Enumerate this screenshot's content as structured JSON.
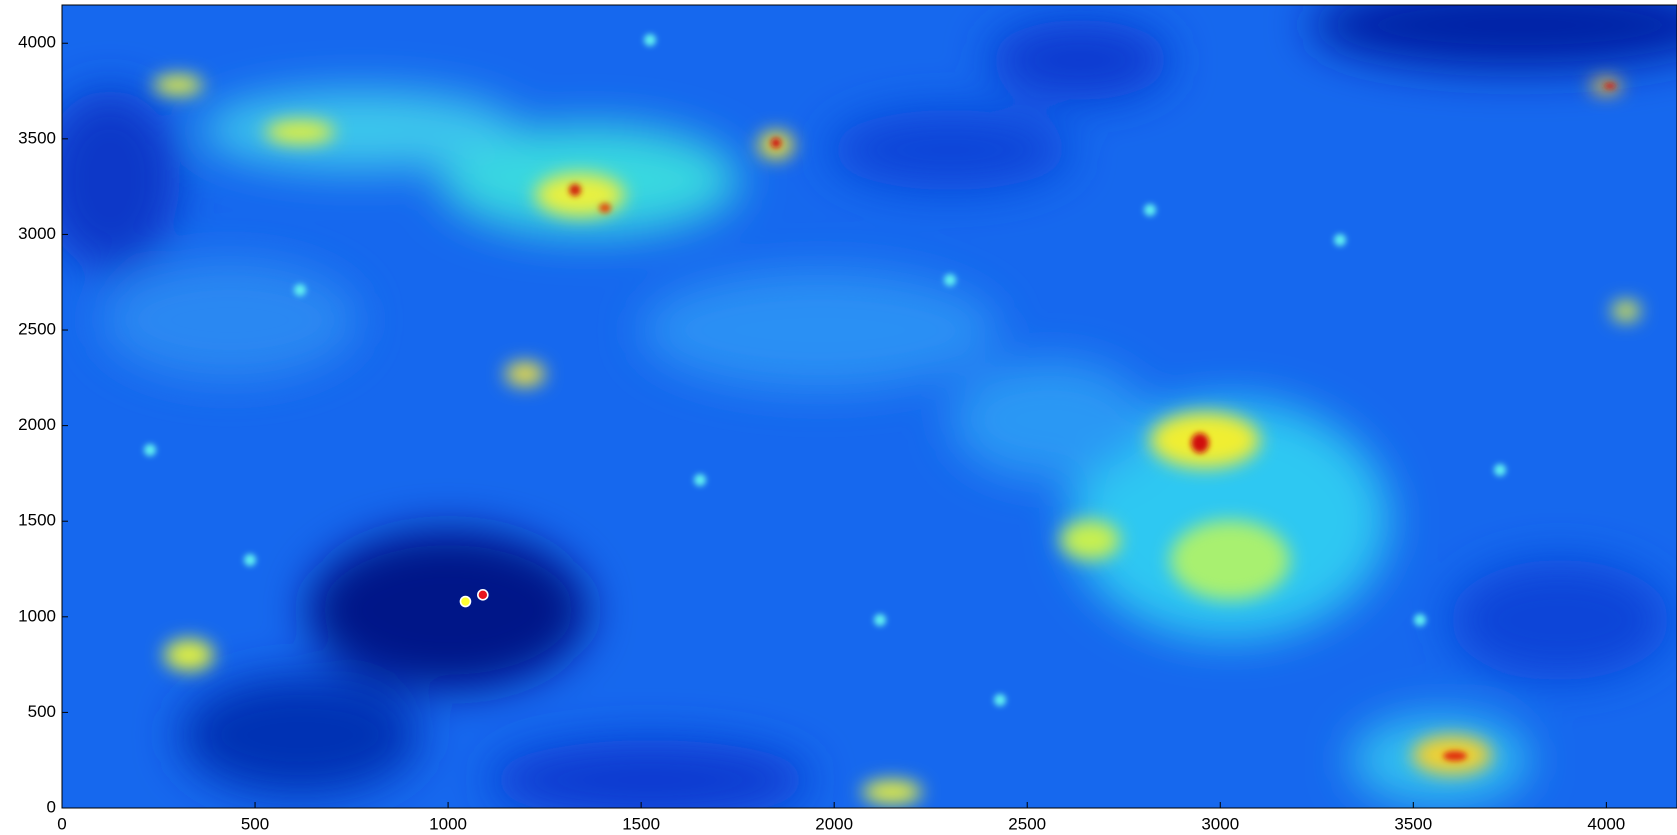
{
  "chart_data": {
    "type": "scatter",
    "series": [
      {
        "color": "#ffff33",
        "x": [
          1045
        ],
        "values": [
          1080
        ]
      },
      {
        "color": "#e8141c",
        "x": [
          1090
        ],
        "values": [
          1115
        ]
      }
    ],
    "xlim": [
      0,
      4183
    ],
    "ylim": [
      0,
      4200
    ],
    "xticks": [
      0,
      500,
      1000,
      1500,
      2000,
      2500,
      3000,
      3500,
      4000
    ],
    "yticks": [
      0,
      500,
      1000,
      1500,
      2000,
      2500,
      3000,
      3500,
      4000
    ]
  }
}
